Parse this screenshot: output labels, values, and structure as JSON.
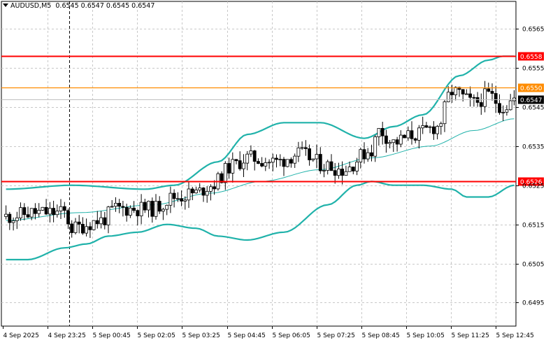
{
  "header": {
    "symbol_tf": "AUDUSD,M5",
    "ohlc": "0.6545 0.6547 0.6545 0.6547"
  },
  "colors": {
    "background": "#ffffff",
    "grid": "#c8c8c8",
    "candle": "#000000",
    "bollinger": "#20b2aa",
    "ma": "#20b2aa",
    "resistance_line": "#ff0000",
    "orange_line": "#ff8c00",
    "current_price_line": "#c0c0c0",
    "label_bg_current": "#000000"
  },
  "chart_data": {
    "type": "candlestick",
    "title": "",
    "ylim": [
      0.6489,
      0.6572
    ],
    "y_ticks": [
      "0.6565",
      "0.6555",
      "0.6545",
      "0.6535",
      "0.6525",
      "0.6515",
      "0.6505",
      "0.6495"
    ],
    "y_tick_values": [
      0.6565,
      0.6555,
      0.6545,
      0.6535,
      0.6525,
      0.6515,
      0.6505,
      0.6495
    ],
    "x_ticks": [
      "4 Sep 2025",
      "4 Sep 23:25",
      "5 Sep 00:45",
      "5 Sep 02:05",
      "5 Sep 03:25",
      "5 Sep 04:45",
      "5 Sep 06:05",
      "5 Sep 07:25",
      "5 Sep 08:45",
      "5 Sep 10:05",
      "5 Sep 11:25",
      "5 Sep 12:45"
    ],
    "horizontal_levels": [
      {
        "label": "0.6558",
        "value": 0.6558,
        "color": "#ff0000",
        "style": "solid"
      },
      {
        "label": "0.6550",
        "value": 0.655,
        "color": "#ff8c00",
        "style": "solid"
      },
      {
        "label": "0.6547",
        "value": 0.6547,
        "color": "#c0c0c0",
        "style": "current"
      },
      {
        "label": "0.6526",
        "value": 0.6526,
        "color": "#ff0000",
        "style": "solid"
      }
    ],
    "vertical_marker": {
      "x_label": "4 Sep 23:25",
      "style": "dashed"
    },
    "candle_count": 140,
    "close_anchors": [
      [
        0,
        0.6517
      ],
      [
        8,
        0.6518
      ],
      [
        16,
        0.6518
      ],
      [
        18,
        0.6514
      ],
      [
        26,
        0.6516
      ],
      [
        30,
        0.6519
      ],
      [
        40,
        0.6519
      ],
      [
        46,
        0.6522
      ],
      [
        52,
        0.6523
      ],
      [
        56,
        0.6525
      ],
      [
        62,
        0.653
      ],
      [
        66,
        0.6532
      ],
      [
        74,
        0.6531
      ],
      [
        80,
        0.6533
      ],
      [
        88,
        0.653
      ],
      [
        92,
        0.6529
      ],
      [
        100,
        0.6534
      ],
      [
        102,
        0.6539
      ],
      [
        106,
        0.6536
      ],
      [
        112,
        0.6538
      ],
      [
        118,
        0.654
      ],
      [
        122,
        0.6549
      ],
      [
        128,
        0.6546
      ],
      [
        132,
        0.6548
      ],
      [
        136,
        0.6545
      ],
      [
        139,
        0.6547
      ]
    ],
    "bollinger_upper": [
      [
        0,
        0.6524
      ],
      [
        18,
        0.6525
      ],
      [
        38,
        0.6524
      ],
      [
        46,
        0.6525
      ],
      [
        58,
        0.6531
      ],
      [
        66,
        0.6538
      ],
      [
        76,
        0.6541
      ],
      [
        86,
        0.6541
      ],
      [
        98,
        0.6537
      ],
      [
        106,
        0.654
      ],
      [
        114,
        0.6543
      ],
      [
        124,
        0.6553
      ],
      [
        132,
        0.6557
      ],
      [
        136,
        0.6558
      ],
      [
        139,
        0.6558
      ]
    ],
    "bollinger_middle": [
      [
        0,
        0.6516
      ],
      [
        20,
        0.6518
      ],
      [
        40,
        0.652
      ],
      [
        56,
        0.6523
      ],
      [
        70,
        0.6526
      ],
      [
        86,
        0.6529
      ],
      [
        100,
        0.6532
      ],
      [
        116,
        0.6535
      ],
      [
        128,
        0.6539
      ],
      [
        139,
        0.6542
      ]
    ],
    "bollinger_lower": [
      [
        0,
        0.6506
      ],
      [
        6,
        0.6506
      ],
      [
        16,
        0.6509
      ],
      [
        22,
        0.651
      ],
      [
        28,
        0.6512
      ],
      [
        36,
        0.6513
      ],
      [
        44,
        0.6515
      ],
      [
        52,
        0.6514
      ],
      [
        58,
        0.6512
      ],
      [
        66,
        0.6511
      ],
      [
        76,
        0.6513
      ],
      [
        88,
        0.652
      ],
      [
        96,
        0.6525
      ],
      [
        100,
        0.6526
      ],
      [
        106,
        0.6525
      ],
      [
        114,
        0.6525
      ],
      [
        122,
        0.6524
      ],
      [
        126,
        0.6522
      ],
      [
        132,
        0.6522
      ],
      [
        139,
        0.6525
      ]
    ]
  }
}
